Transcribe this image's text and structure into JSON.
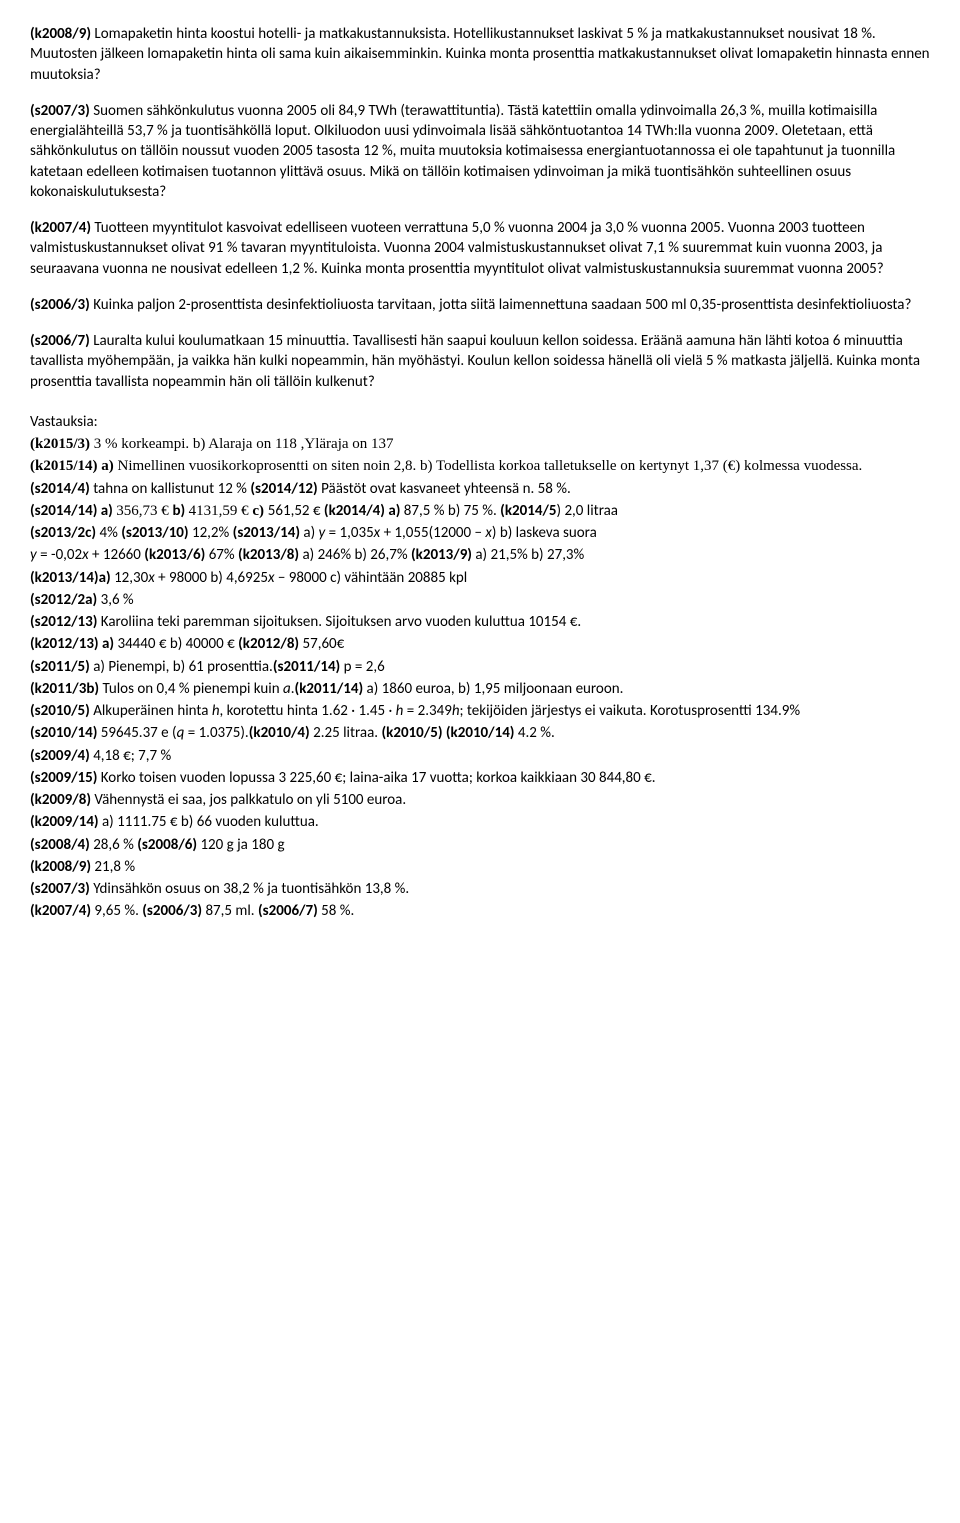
{
  "problems": [
    {
      "id": "(k2008/9)",
      "text": " Lomapaketin hinta koostui hotelli- ja matkakustannuksista. Hotellikustannukset laskivat 5 % ja matkakustannukset nousivat 18 %. Muutosten jälkeen lomapaketin hinta oli sama kuin aikaisemminkin. Kuinka monta prosenttia matkakustannukset olivat lomapaketin hinnasta ennen muutoksia?"
    },
    {
      "id": "(s2007/3)",
      "text": " Suomen sähkönkulutus vuonna 2005 oli 84,9 TWh (terawattituntia). Tästä katettiin omalla ydinvoimalla 26,3 %, muilla kotimaisilla energialähteillä 53,7 % ja tuontisähköllä loput. Olkiluodon uusi ydinvoimala lisää sähköntuotantoa 14 TWh:lla vuonna 2009. Oletetaan, että sähkönkulutus on tällöin noussut vuoden 2005 tasosta 12 %, muita muutoksia kotimaisessa energiantuotannossa ei ole tapahtunut ja tuonnilla katetaan edelleen kotimaisen tuotannon ylittävä osuus. Mikä on tällöin kotimaisen ydinvoiman ja mikä tuontisähkön suhteellinen osuus kokonaiskulutuksesta?"
    },
    {
      "id": "(k2007/4)",
      "text": " Tuotteen myyntitulot kasvoivat edelliseen vuoteen verrattuna 5,0 % vuonna 2004 ja 3,0 % vuonna 2005. Vuonna 2003 tuotteen valmistuskustannukset olivat 91 % tavaran myyntituloista. Vuonna 2004 valmistuskustannukset olivat 7,1 % suuremmat kuin vuonna 2003, ja seuraavana vuonna ne nousivat edelleen 1,2 %. Kuinka monta prosenttia myyntitulot olivat valmistuskustannuksia suuremmat vuonna 2005?"
    },
    {
      "id": "(s2006/3)",
      "text": " Kuinka paljon 2-prosenttista desinfektioliuosta tarvitaan, jotta siitä laimennettuna saadaan 500 ml 0,35-prosenttista desinfektioliuosta?"
    },
    {
      "id": "(s2006/7)",
      "text": " Lauralta kului koulumatkaan 15 minuuttia. Tavallisesti hän saapui kouluun kellon soidessa. Eräänä aamuna hän lähti kotoa 6 minuuttia tavallista myöhempään, ja vaikka hän kulki nopeammin, hän myöhästyi. Koulun kellon soidessa hänellä oli vielä 5 % matkasta jäljellä. Kuinka monta prosenttia tavallista nopeammin hän oli tällöin kulkenut?"
    }
  ],
  "answers_heading": "Vastauksia:",
  "answers": {
    "l1_a": "(k2015/3)",
    "l1_b": " 3 % korkeampi. b) Alaraja on 118 ,Yläraja on 137",
    "l2_a": "(k2015/14) a)",
    "l2_b": " Nimellinen vuosikorkoprosentti on siten noin 2,8. b) Todellista korkoa talletukselle on kertynyt 1,37  (€) kolmessa vuodessa.",
    "l3_a": "(s2014/4)",
    "l3_b": " tahna on kallistunut 12 % ",
    "l3_c": "(s2014/12)",
    "l3_d": " Päästöt ovat  kasvaneet yhteensä n. 58 %.",
    "l4_a": "(s2014/14) a) ",
    "l4_b": "356,73 € ",
    "l4_c": "b) ",
    "l4_d": "4131,59 € ",
    "l4_e": "c) ",
    "l4_f": " 561,52 € ",
    "l4_g": "(k2014/4) a)",
    "l4_h": " 87,5 % b) 75 %.  ",
    "l4_i": "(k2014/5",
    "l4_j": ") 2,0 litraa",
    "l5_a": "(s2013/2c)",
    "l5_b": " 4% ",
    "l5_c": "(s2013/10)",
    "l5_d": " 12,2% ",
    "l5_e": "(s2013/14)",
    "l5_f": " a) ",
    "l5_g": "y",
    "l5_h": " = 1,035",
    "l5_i": "x",
    "l5_j": " + 1,055(12000 − ",
    "l5_k": "x",
    "l5_l": ") b) laskeva  suora",
    "l6_a": " ",
    "l6_b": "y",
    "l6_c": " = -0,02",
    "l6_d": "x",
    "l6_e": " + 12660 ",
    "l6_f": "(k2013/6)",
    "l6_g": " 67% ",
    "l6_h": "(k2013/8)",
    "l6_i": " a) 246% b) 26,7% ",
    "l6_j": "(k2013/9)",
    "l6_k": " a) 21,5% b) 27,3%",
    "l7_a": "(k2013/14)a)",
    "l7_b": "  12,30",
    "l7_c": "x",
    "l7_d": " + 98000 b) 4,6925",
    "l7_e": "x",
    "l7_f": " − 98000 c) vähintään 20885 kpl",
    "l8_a": "(s2012/2a)",
    "l8_b": " 3,6 %",
    "l9_a": "(s2012/13)",
    "l9_b": " Karoliina teki paremman sijoituksen. Sijoituksen arvo vuoden kuluttua 10154 €.",
    "l10_a": "(k2012/13) a)",
    "l10_b": " 34440 €   b) 40000 €         ",
    "l10_c": "(k2012/8) ",
    "l10_d": "57,60€",
    "l11_a": "(s2011/5)",
    "l11_b": " a) Pienempi, b) 61 prosenttia.",
    "l11_c": "(s2011/14)",
    "l11_d": " p = 2,6",
    "l12_a": "(k2011/3b)",
    "l12_b": " Tulos on 0,4 % pienempi kuin ",
    "l12_c": "a",
    "l12_d": ".",
    "l12_e": "(k2011/14)",
    "l12_f": " a) 1860 euroa, b) 1,95 miljoonaan euroon.",
    "l13_a": "(s2010/5)",
    "l13_b": " Alkuperäinen hinta ",
    "l13_c": "h",
    "l13_d": ", korotettu hinta 1.62 · 1.45 · ",
    "l13_e": "h",
    "l13_f": " = 2.349",
    "l13_g": "h",
    "l13_h": "; tekijöiden järjestys ei vaikuta. Korotusprosentti 134.9%",
    "l14_a": "(s2010/14)",
    "l14_b": " 59645.37 e (",
    "l14_c": "q",
    "l14_d": " = 1.0375).",
    "l14_e": "(k2010/4)",
    "l14_f": " 2.25 litraa. ",
    "l14_g": "(k2010/5) (k2010/14)",
    "l14_h": " 4.2 %.",
    "l15_a": "(s2009/4)",
    "l15_b": "  4,18 €; 7,7 %",
    "l16_a": "(s2009/15)",
    "l16_b": " Korko toisen vuoden lopussa 3 225,60 €; laina-aika 17 vuotta; korkoa kaikkiaan 30 844,80 €.",
    "l17_a": "(k2009/8)",
    "l17_b": " Vähennystä ei saa, jos palkkatulo on yli 5100 euroa.",
    "l18_a": "(k2009/14)",
    "l18_b": " a) 1111.75 €    b) 66 vuoden kuluttua.",
    "l19_a": "(s2008/4)",
    "l19_b": " 28,6 %                  ",
    "l19_c": "(s2008/6)",
    "l19_d": " 120 g ja 180 g",
    "l20_a": "(k2008/9)",
    "l20_b": " 21,8 %",
    "l21_a": "(s2007/3)",
    "l21_b": " Ydinsähkön osuus on 38,2 % ja tuontisähkön 13,8 %.",
    "l22_a": "(k2007/4)",
    "l22_b": " 9,65 %. ",
    "l22_c": "(s2006/3)",
    "l22_d": " 87,5 ml.       ",
    "l22_e": "(s2006/7)",
    "l22_f": " 58 %."
  }
}
